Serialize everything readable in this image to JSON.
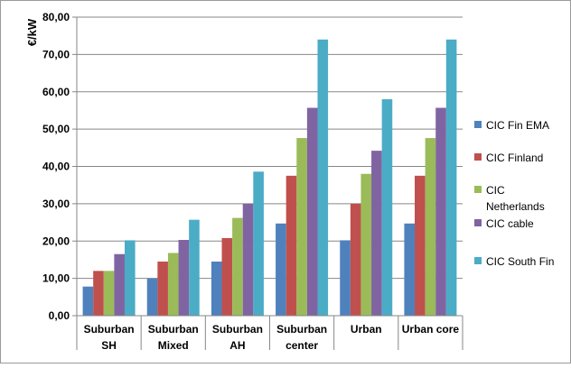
{
  "chart_data": {
    "type": "bar",
    "ylabel": "€/kW",
    "ylim": [
      0,
      80
    ],
    "yticks": [
      "0,00",
      "10,00",
      "20,00",
      "30,00",
      "40,00",
      "50,00",
      "60,00",
      "70,00",
      "80,00"
    ],
    "grid": "horizontal",
    "legend_position": "right",
    "categories": [
      [
        "Suburban",
        "SH"
      ],
      [
        "Suburban",
        "Mixed"
      ],
      [
        "Suburban",
        "AH"
      ],
      [
        "Suburban",
        "center"
      ],
      [
        "Urban"
      ],
      [
        "Urban core"
      ]
    ],
    "series": [
      {
        "name": "CIC Fin EMA",
        "legend_lines": [
          "CIC Fin EMA"
        ],
        "color": "#4F81BD",
        "values": [
          7.8,
          10.0,
          14.5,
          24.7,
          20.2,
          24.7
        ]
      },
      {
        "name": "CIC Finland",
        "legend_lines": [
          "CIC Finland"
        ],
        "color": "#C0504D",
        "values": [
          12.0,
          14.5,
          20.8,
          37.5,
          30.0,
          37.5
        ]
      },
      {
        "name": "CIC Netherlands",
        "legend_lines": [
          "CIC",
          "Netherlands"
        ],
        "color": "#9BBB59",
        "values": [
          12.0,
          16.8,
          26.2,
          47.6,
          38.0,
          47.6
        ]
      },
      {
        "name": "CIC cable",
        "legend_lines": [
          "CIC cable"
        ],
        "color": "#8064A2",
        "values": [
          16.5,
          20.3,
          30.0,
          55.7,
          44.2,
          55.7
        ]
      },
      {
        "name": "CIC South Fin",
        "legend_lines": [
          "CIC South Fin"
        ],
        "color": "#4BACC6",
        "values": [
          20.2,
          25.7,
          38.6,
          74.0,
          58.0,
          74.0
        ]
      }
    ]
  }
}
